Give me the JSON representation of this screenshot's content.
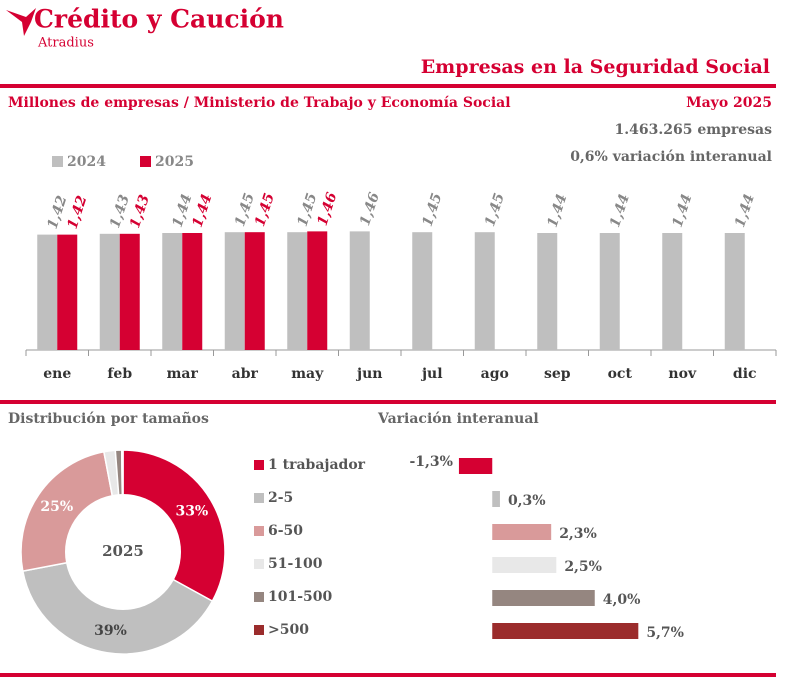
{
  "header": {
    "brand": "Crédito y Caución",
    "sub_brand": "Atradius",
    "title": "Empresas en la Seguridad Social",
    "subtitle": "Millones de empresas / Ministerio de Trabajo y Economía Social",
    "date": "Mayo 2025",
    "stats": [
      "1.463.265 empresas",
      "0,6% variación interanual"
    ]
  },
  "chart_data": [
    {
      "type": "bar",
      "orientation": "vertical",
      "categories": [
        "ene",
        "feb",
        "mar",
        "abr",
        "may",
        "jun",
        "jul",
        "ago",
        "sep",
        "oct",
        "nov",
        "dic"
      ],
      "ylim": [
        0,
        1.6
      ],
      "legend": "top-left",
      "series": [
        {
          "name": "2024",
          "color": "#bfbfbf",
          "label_color": "#888888",
          "values": [
            1.42,
            1.43,
            1.44,
            1.45,
            1.45,
            1.46,
            1.45,
            1.45,
            1.44,
            1.44,
            1.44,
            1.44
          ],
          "value_labels": [
            "1,42",
            "1,43",
            "1,44",
            "1,45",
            "1,45",
            "1,46",
            "1,45",
            "1,45",
            "1,44",
            "1,44",
            "1,44",
            "1,44"
          ]
        },
        {
          "name": "2025",
          "color": "#d50032",
          "label_color": "#d50032",
          "values": [
            1.42,
            1.43,
            1.44,
            1.45,
            1.46,
            null,
            null,
            null,
            null,
            null,
            null,
            null
          ],
          "value_labels": [
            "1,42",
            "1,43",
            "1,44",
            "1,45",
            "1,46",
            null,
            null,
            null,
            null,
            null,
            null,
            null
          ]
        }
      ]
    },
    {
      "type": "pie",
      "title": "Distribución por tamaños",
      "center_label": "2025",
      "categories": [
        "1 trabajador",
        "2-5",
        "6-50",
        "51-100",
        "101-500",
        ">500"
      ],
      "values": [
        33,
        39,
        25,
        1.8,
        1.0,
        0.2
      ],
      "value_labels": [
        "33%",
        "39%",
        "25%",
        null,
        null,
        null
      ],
      "colors": [
        "#d50032",
        "#bfbfbf",
        "#d99a9a",
        "#e8e8e8",
        "#958680",
        "#9b2c2c"
      ],
      "label_colors": [
        "#ffffff",
        "#444444",
        "#ffffff",
        null,
        null,
        null
      ]
    },
    {
      "type": "bar",
      "orientation": "horizontal",
      "title": "Variación interanual",
      "xlim": [
        -2,
        6
      ],
      "values": [
        -1.3,
        0.3,
        2.3,
        2.5,
        4.0,
        5.7
      ],
      "value_labels": [
        "-1,3%",
        "0,3%",
        "2,3%",
        "2,5%",
        "4,0%",
        "5,7%"
      ],
      "colors": [
        "#d50032",
        "#bfbfbf",
        "#d99a9a",
        "#e8e8e8",
        "#958680",
        "#9b2c2c"
      ]
    }
  ]
}
